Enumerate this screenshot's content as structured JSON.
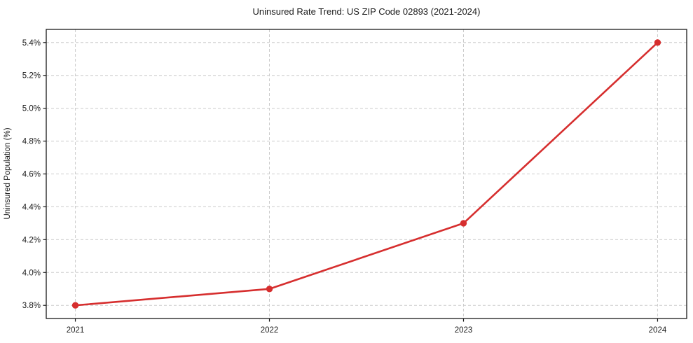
{
  "page": {
    "background": "#ffffff"
  },
  "chart_data": {
    "type": "line",
    "title": "Uninsured Rate Trend: US ZIP Code 02893 (2021-2024)",
    "xlabel": "",
    "ylabel": "Uninsured Population (%)",
    "x": [
      2021,
      2022,
      2023,
      2024
    ],
    "x_tick_labels": [
      "2021",
      "2022",
      "2023",
      "2024"
    ],
    "series": [
      {
        "name": "uninsured-rate",
        "values": [
          3.8,
          3.9,
          4.3,
          5.4
        ],
        "color": "#d62e2e",
        "marker": "circle",
        "marker_radius": 4.7
      }
    ],
    "y_ticks": [
      3.8,
      4.0,
      4.2,
      4.4,
      4.6,
      4.8,
      5.0,
      5.2,
      5.4
    ],
    "y_tick_labels": [
      "3.8%",
      "4.0%",
      "4.2%",
      "4.4%",
      "4.6%",
      "4.8%",
      "5.0%",
      "5.2%",
      "5.4%"
    ],
    "xlim": [
      2020.85,
      2024.15
    ],
    "ylim": [
      3.72,
      5.48
    ],
    "grid": true,
    "grid_color": "#cccccc",
    "spine_color": "#1a1a1a",
    "text_color": "#1a1a1a",
    "legend_position": "none"
  }
}
